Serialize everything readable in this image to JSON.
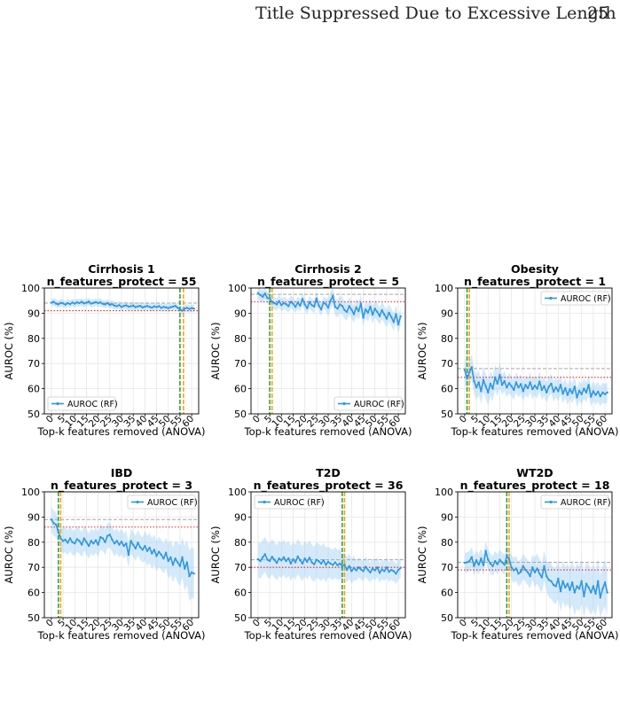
{
  "page": {
    "running_title": "Title Suppressed Due to Excessive Length",
    "page_number": "25"
  },
  "colors": {
    "series_line": "#2f96e4",
    "band_fill": "#9fd0f5",
    "baseline_gray": "#a8a8a8",
    "red_threshold": "#e32b2b",
    "green_marker": "#2c9a2c",
    "orange_marker": "#f0a20a"
  },
  "chart_data": [
    {
      "type": "line",
      "title": "Cirrhosis 1",
      "subtitle": "n_features_protect = 55",
      "xlabel": "Top-k features removed (ANOVA)",
      "ylabel": "AUROC (%)",
      "xlim": [
        -3,
        63
      ],
      "ylim": [
        50,
        100
      ],
      "xticks": [
        "0",
        "5",
        "10",
        "15",
        "20",
        "25",
        "30",
        "35",
        "40",
        "45",
        "50",
        "55",
        "60"
      ],
      "yticks": [
        "50",
        "60",
        "70",
        "80",
        "90",
        "100"
      ],
      "legend_label": "AUROC (RF)",
      "legend_position": "lower-left",
      "gray_line": 94,
      "red_line": 91,
      "green_x": 55,
      "orange_x": 56.5,
      "grid": true,
      "x": [
        0,
        1,
        2,
        3,
        4,
        5,
        6,
        7,
        8,
        9,
        10,
        11,
        12,
        13,
        14,
        15,
        16,
        17,
        18,
        19,
        20,
        21,
        22,
        23,
        24,
        25,
        26,
        27,
        28,
        29,
        30,
        31,
        32,
        33,
        34,
        35,
        36,
        37,
        38,
        39,
        40,
        41,
        42,
        43,
        44,
        45,
        46,
        47,
        48,
        49,
        50,
        51,
        52,
        53,
        54,
        55,
        56,
        57,
        58,
        59,
        60,
        61
      ],
      "y": [
        94.2,
        94.5,
        93.8,
        93.5,
        94.1,
        93.9,
        93.4,
        94.0,
        93.6,
        94.2,
        93.8,
        94.3,
        94.0,
        94.5,
        93.9,
        94.2,
        94.6,
        93.8,
        94.1,
        94.4,
        94.0,
        94.3,
        93.7,
        93.5,
        94.0,
        93.3,
        93.6,
        93.0,
        92.8,
        93.2,
        92.5,
        92.9,
        93.1,
        92.6,
        92.8,
        93.0,
        92.4,
        92.7,
        92.9,
        92.3,
        92.6,
        92.9,
        92.5,
        92.2,
        92.7,
        92.4,
        92.8,
        92.1,
        92.5,
        92.3,
        92.0,
        92.4,
        92.6,
        92.9,
        92.2,
        91.5,
        91.0,
        91.8,
        92.1,
        91.7,
        92.0,
        91.8
      ],
      "band": [
        1.5,
        1.5,
        1.5,
        1.5,
        1.5,
        1.5,
        1.5,
        1.5,
        1.5,
        1.5,
        1.5,
        1.5,
        1.5,
        1.5,
        1.5,
        1.5,
        1.5,
        1.5,
        1.5,
        1.5,
        1.5,
        1.5,
        1.5,
        1.5,
        1.5,
        1.5,
        1.5,
        1.5,
        1.5,
        1.5,
        1.5,
        1.5,
        1.5,
        1.5,
        1.5,
        1.5,
        1.5,
        1.5,
        1.5,
        1.5,
        1.5,
        1.5,
        1.5,
        1.5,
        1.5,
        1.5,
        1.5,
        1.5,
        1.5,
        1.5,
        1.5,
        1.5,
        1.5,
        1.5,
        1.5,
        1.5,
        1.5,
        1.5,
        1.5,
        1.5,
        1.5,
        1.5
      ]
    },
    {
      "type": "line",
      "title": "Cirrhosis 2",
      "subtitle": "n_features_protect = 5",
      "xlabel": "Top-k features removed (ANOVA)",
      "ylabel": "AUROC (%)",
      "xlim": [
        -3,
        63
      ],
      "ylim": [
        50,
        100
      ],
      "xticks": [
        "0",
        "5",
        "10",
        "15",
        "20",
        "25",
        "30",
        "35",
        "40",
        "45",
        "50",
        "55",
        "60"
      ],
      "yticks": [
        "50",
        "60",
        "70",
        "80",
        "90",
        "100"
      ],
      "legend_label": "AUROC (RF)",
      "legend_position": "lower-right",
      "gray_line": 97.5,
      "red_line": 94.5,
      "green_x": 5,
      "orange_x": 6,
      "grid": true,
      "x": [
        0,
        1,
        2,
        3,
        4,
        5,
        6,
        7,
        8,
        9,
        10,
        11,
        12,
        13,
        14,
        15,
        16,
        17,
        18,
        19,
        20,
        21,
        22,
        23,
        24,
        25,
        26,
        27,
        28,
        29,
        30,
        31,
        32,
        33,
        34,
        35,
        36,
        37,
        38,
        39,
        40,
        41,
        42,
        43,
        44,
        45,
        46,
        47,
        48,
        49,
        50,
        51,
        52,
        53,
        54,
        55,
        56,
        57,
        58,
        59,
        60,
        61
      ],
      "y": [
        98.0,
        97.2,
        96.5,
        97.8,
        96.0,
        95.8,
        94.5,
        94.0,
        93.5,
        94.8,
        93.2,
        94.0,
        93.6,
        92.8,
        94.5,
        93.8,
        92.5,
        94.2,
        93.0,
        95.6,
        93.5,
        92.0,
        94.4,
        93.2,
        92.6,
        95.8,
        93.0,
        91.5,
        94.3,
        93.6,
        92.2,
        95.0,
        96.8,
        92.5,
        91.8,
        93.5,
        92.9,
        91.2,
        90.5,
        92.8,
        91.4,
        89.6,
        92.3,
        90.8,
        93.8,
        88.2,
        91.5,
        90.2,
        92.6,
        89.4,
        91.8,
        90.5,
        88.8,
        91.2,
        89.5,
        87.8,
        90.2,
        88.5,
        86.5,
        89.6,
        85.5,
        88.8
      ],
      "band": [
        2.5,
        2.5,
        2.5,
        2.5,
        2.5,
        2.5,
        2.5,
        2.5,
        2.5,
        2.5,
        2.5,
        2.5,
        2.5,
        2.5,
        2.5,
        2.5,
        2.5,
        2.5,
        2.5,
        2.5,
        2.5,
        2.5,
        2.5,
        2.5,
        2.5,
        2.5,
        2.5,
        2.5,
        2.5,
        2.5,
        3.5,
        3.5,
        3.5,
        3.5,
        3.5,
        3.5,
        3.5,
        3.5,
        3.5,
        3.5,
        3.5,
        3.5,
        3.5,
        3.5,
        3.5,
        3.5,
        3.5,
        3.5,
        3.5,
        3.5,
        3.5,
        3.5,
        3.5,
        3.5,
        3.5,
        3.5,
        3.5,
        3.5,
        3.5,
        3.5,
        3.5,
        3.5
      ]
    },
    {
      "type": "line",
      "title": "Obesity",
      "subtitle": "n_features_protect = 1",
      "xlabel": "Top-k features removed (ANOVA)",
      "ylabel": "AUROC (%)",
      "xlim": [
        -3,
        63
      ],
      "ylim": [
        50,
        100
      ],
      "xticks": [
        "0",
        "5",
        "10",
        "15",
        "20",
        "25",
        "30",
        "35",
        "40",
        "45",
        "50",
        "55",
        "60"
      ],
      "yticks": [
        "50",
        "60",
        "70",
        "80",
        "90",
        "100"
      ],
      "legend_label": "AUROC (RF)",
      "legend_position": "upper-right",
      "gray_line": 68,
      "red_line": 64.5,
      "green_x": 1,
      "orange_x": 2,
      "grid": true,
      "x": [
        0,
        1,
        2,
        3,
        4,
        5,
        6,
        7,
        8,
        9,
        10,
        11,
        12,
        13,
        14,
        15,
        16,
        17,
        18,
        19,
        20,
        21,
        22,
        23,
        24,
        25,
        26,
        27,
        28,
        29,
        30,
        31,
        32,
        33,
        34,
        35,
        36,
        37,
        38,
        39,
        40,
        41,
        42,
        43,
        44,
        45,
        46,
        47,
        48,
        49,
        50,
        51,
        52,
        53,
        54,
        55,
        56,
        57,
        58,
        59,
        60,
        61
      ],
      "y": [
        67.5,
        64.0,
        66.5,
        68.5,
        63.0,
        60.5,
        62.5,
        59.0,
        63.5,
        61.0,
        58.5,
        62.0,
        60.0,
        64.5,
        62.0,
        65.5,
        61.5,
        63.0,
        60.5,
        62.2,
        61.0,
        59.5,
        62.5,
        60.5,
        61.8,
        59.0,
        61.5,
        60.2,
        62.5,
        59.8,
        61.2,
        60.0,
        62.8,
        59.5,
        61.0,
        58.5,
        60.8,
        62.0,
        58.8,
        60.5,
        59.0,
        61.5,
        58.0,
        60.2,
        57.5,
        59.8,
        58.2,
        60.8,
        56.5,
        59.2,
        57.8,
        60.0,
        58.5,
        61.5,
        56.8,
        59.0,
        57.5,
        58.8,
        57.0,
        58.5,
        57.8,
        58.5
      ],
      "band": [
        5,
        5,
        5,
        5,
        5,
        5,
        5,
        5,
        5,
        5,
        5,
        5,
        5,
        5,
        5,
        5,
        4,
        4,
        4,
        4,
        4,
        4,
        4,
        4,
        4,
        4,
        4,
        4,
        4,
        4,
        4,
        4,
        4,
        4,
        4,
        4,
        4,
        4,
        4,
        4,
        4,
        4,
        4,
        4,
        4,
        4,
        4,
        4,
        4,
        4,
        4,
        4,
        4,
        4,
        4,
        4,
        4,
        4,
        4,
        4,
        4,
        4
      ]
    },
    {
      "type": "line",
      "title": "IBD",
      "subtitle": "n_features_protect = 3",
      "xlabel": "Top-k features removed (ANOVA)",
      "ylabel": "AUROC (%)",
      "xlim": [
        -3,
        63
      ],
      "ylim": [
        50,
        100
      ],
      "xticks": [
        "0",
        "5",
        "10",
        "15",
        "20",
        "25",
        "30",
        "35",
        "40",
        "45",
        "50",
        "55",
        "60"
      ],
      "yticks": [
        "50",
        "60",
        "70",
        "80",
        "90",
        "100"
      ],
      "legend_label": "AUROC (RF)",
      "legend_position": "upper-right",
      "gray_line": 89,
      "red_line": 86,
      "green_x": 3,
      "orange_x": 4,
      "grid": true,
      "x": [
        0,
        1,
        2,
        3,
        4,
        5,
        6,
        7,
        8,
        9,
        10,
        11,
        12,
        13,
        14,
        15,
        16,
        17,
        18,
        19,
        20,
        21,
        22,
        23,
        24,
        25,
        26,
        27,
        28,
        29,
        30,
        31,
        32,
        33,
        34,
        35,
        36,
        37,
        38,
        39,
        40,
        41,
        42,
        43,
        44,
        45,
        46,
        47,
        48,
        49,
        50,
        51,
        52,
        53,
        54,
        55,
        56,
        57,
        58,
        59,
        60,
        61
      ],
      "y": [
        89.0,
        87.5,
        87.0,
        84.0,
        81.5,
        80.5,
        81.0,
        79.8,
        81.5,
        80.0,
        79.5,
        81.2,
        80.5,
        79.0,
        81.5,
        80.0,
        78.5,
        80.5,
        79.5,
        80.8,
        79.0,
        82.0,
        81.5,
        80.0,
        82.5,
        83.0,
        81.0,
        79.5,
        80.5,
        79.0,
        80.2,
        78.5,
        79.5,
        75.0,
        80.5,
        79.0,
        77.5,
        79.8,
        78.0,
        77.0,
        78.5,
        76.5,
        77.8,
        75.5,
        77.0,
        74.5,
        76.2,
        75.0,
        73.5,
        75.8,
        72.5,
        74.0,
        71.0,
        73.5,
        72.0,
        70.5,
        74.0,
        69.5,
        72.0,
        66.5,
        68.0,
        67.5
      ],
      "band": [
        5,
        5,
        5,
        5,
        5,
        5,
        5,
        5,
        5,
        5,
        5,
        5,
        5,
        5,
        5,
        5,
        5,
        5,
        5,
        5,
        5,
        5,
        5,
        5,
        5,
        5,
        5,
        5,
        5,
        5,
        5,
        5,
        5,
        5,
        5,
        5,
        5,
        5,
        5,
        5,
        6,
        6,
        6,
        6,
        6,
        6,
        6,
        6,
        6,
        6,
        7,
        7,
        7,
        7,
        8,
        8,
        8,
        9,
        9,
        10,
        10,
        10
      ]
    },
    {
      "type": "line",
      "title": "T2D",
      "subtitle": "n_features_protect = 36",
      "xlabel": "Top-k features removed (ANOVA)",
      "ylabel": "AUROC (%)",
      "xlim": [
        -3,
        63
      ],
      "ylim": [
        50,
        100
      ],
      "xticks": [
        "0",
        "5",
        "10",
        "15",
        "20",
        "25",
        "30",
        "35",
        "40",
        "45",
        "50",
        "55",
        "60"
      ],
      "yticks": [
        "50",
        "60",
        "70",
        "80",
        "90",
        "100"
      ],
      "legend_label": "AUROC (RF)",
      "legend_position": "upper-left",
      "gray_line": 73,
      "red_line": 70,
      "green_x": 36,
      "orange_x": 37,
      "grid": true,
      "x": [
        0,
        1,
        2,
        3,
        4,
        5,
        6,
        7,
        8,
        9,
        10,
        11,
        12,
        13,
        14,
        15,
        16,
        17,
        18,
        19,
        20,
        21,
        22,
        23,
        24,
        25,
        26,
        27,
        28,
        29,
        30,
        31,
        32,
        33,
        34,
        35,
        36,
        37,
        38,
        39,
        40,
        41,
        42,
        43,
        44,
        45,
        46,
        47,
        48,
        49,
        50,
        51,
        52,
        53,
        54,
        55,
        56,
        57,
        58,
        59,
        60,
        61
      ],
      "y": [
        73.2,
        72.5,
        74.0,
        75.2,
        73.0,
        72.5,
        74.2,
        73.0,
        71.8,
        73.5,
        72.8,
        74.0,
        72.5,
        73.6,
        71.5,
        73.2,
        72.0,
        74.3,
        72.8,
        71.5,
        73.5,
        72.2,
        73.8,
        72.0,
        71.2,
        73.0,
        72.4,
        71.5,
        72.8,
        71.0,
        72.2,
        71.5,
        71.0,
        72.0,
        70.8,
        71.5,
        70.5,
        71.0,
        69.0,
        70.5,
        68.5,
        69.8,
        68.8,
        70.0,
        69.2,
        68.5,
        70.2,
        69.0,
        68.0,
        69.5,
        68.8,
        70.0,
        67.8,
        69.2,
        68.5,
        70.0,
        68.2,
        69.0,
        68.5,
        67.5,
        69.0,
        69.8
      ],
      "band": [
        7,
        7,
        7,
        7,
        7,
        7,
        7,
        7,
        7,
        7,
        7,
        7,
        7,
        7,
        7,
        7,
        7,
        7,
        7,
        7,
        7,
        7,
        7,
        7,
        7,
        7,
        7,
        7,
        7,
        7,
        6,
        6,
        6,
        6,
        6,
        6,
        5,
        5,
        5,
        5,
        5,
        5,
        4,
        4,
        4,
        4,
        4,
        4,
        4,
        4,
        4,
        4,
        4,
        4,
        4,
        4,
        4,
        4,
        4,
        4,
        4,
        4
      ]
    },
    {
      "type": "line",
      "title": "WT2D",
      "subtitle": "n_features_protect = 18",
      "xlabel": "Top-k features removed (ANOVA)",
      "ylabel": "AUROC (%)",
      "xlim": [
        -3,
        63
      ],
      "ylim": [
        50,
        100
      ],
      "xticks": [
        "0",
        "5",
        "10",
        "15",
        "20",
        "25",
        "30",
        "35",
        "40",
        "45",
        "50",
        "55",
        "60"
      ],
      "yticks": [
        "50",
        "60",
        "70",
        "80",
        "90",
        "100"
      ],
      "legend_label": "AUROC (RF)",
      "legend_position": "upper-right",
      "gray_line": 72,
      "red_line": 69,
      "green_x": 18,
      "orange_x": 19,
      "grid": true,
      "x": [
        0,
        1,
        2,
        3,
        4,
        5,
        6,
        7,
        8,
        9,
        10,
        11,
        12,
        13,
        14,
        15,
        16,
        17,
        18,
        19,
        20,
        21,
        22,
        23,
        24,
        25,
        26,
        27,
        28,
        29,
        30,
        31,
        32,
        33,
        34,
        35,
        36,
        37,
        38,
        39,
        40,
        41,
        42,
        43,
        44,
        45,
        46,
        47,
        48,
        49,
        50,
        51,
        52,
        53,
        54,
        55,
        56,
        57,
        58,
        59,
        60,
        61
      ],
      "y": [
        71.8,
        72.0,
        72.5,
        74.0,
        70.5,
        72.8,
        71.0,
        73.5,
        70.8,
        76.5,
        73.0,
        71.5,
        70.5,
        72.5,
        71.2,
        73.0,
        72.0,
        71.0,
        74.5,
        73.2,
        70.0,
        68.8,
        69.5,
        67.5,
        68.2,
        70.5,
        69.0,
        68.0,
        66.5,
        70.0,
        68.0,
        69.5,
        67.5,
        66.0,
        70.5,
        66.5,
        65.0,
        64.5,
        63.0,
        62.5,
        65.5,
        60.5,
        64.5,
        62.0,
        63.5,
        61.0,
        64.0,
        60.0,
        62.5,
        61.5,
        64.5,
        58.5,
        63.5,
        62.0,
        60.0,
        62.5,
        59.5,
        64.5,
        58.0,
        61.5,
        64.0,
        60.0
      ],
      "band": [
        4,
        4,
        4,
        4,
        4,
        4,
        4,
        4,
        4,
        4,
        4,
        4,
        4,
        4,
        4,
        4,
        4,
        4,
        4,
        4,
        5,
        5,
        5,
        5,
        5,
        5,
        5,
        5,
        5,
        5,
        6,
        6,
        6,
        6,
        6,
        6,
        7,
        7,
        7,
        7,
        8,
        8,
        8,
        8,
        8,
        8,
        9,
        9,
        9,
        9,
        9,
        9,
        9,
        9,
        9,
        9,
        9,
        9,
        9,
        9,
        9,
        9
      ]
    }
  ]
}
